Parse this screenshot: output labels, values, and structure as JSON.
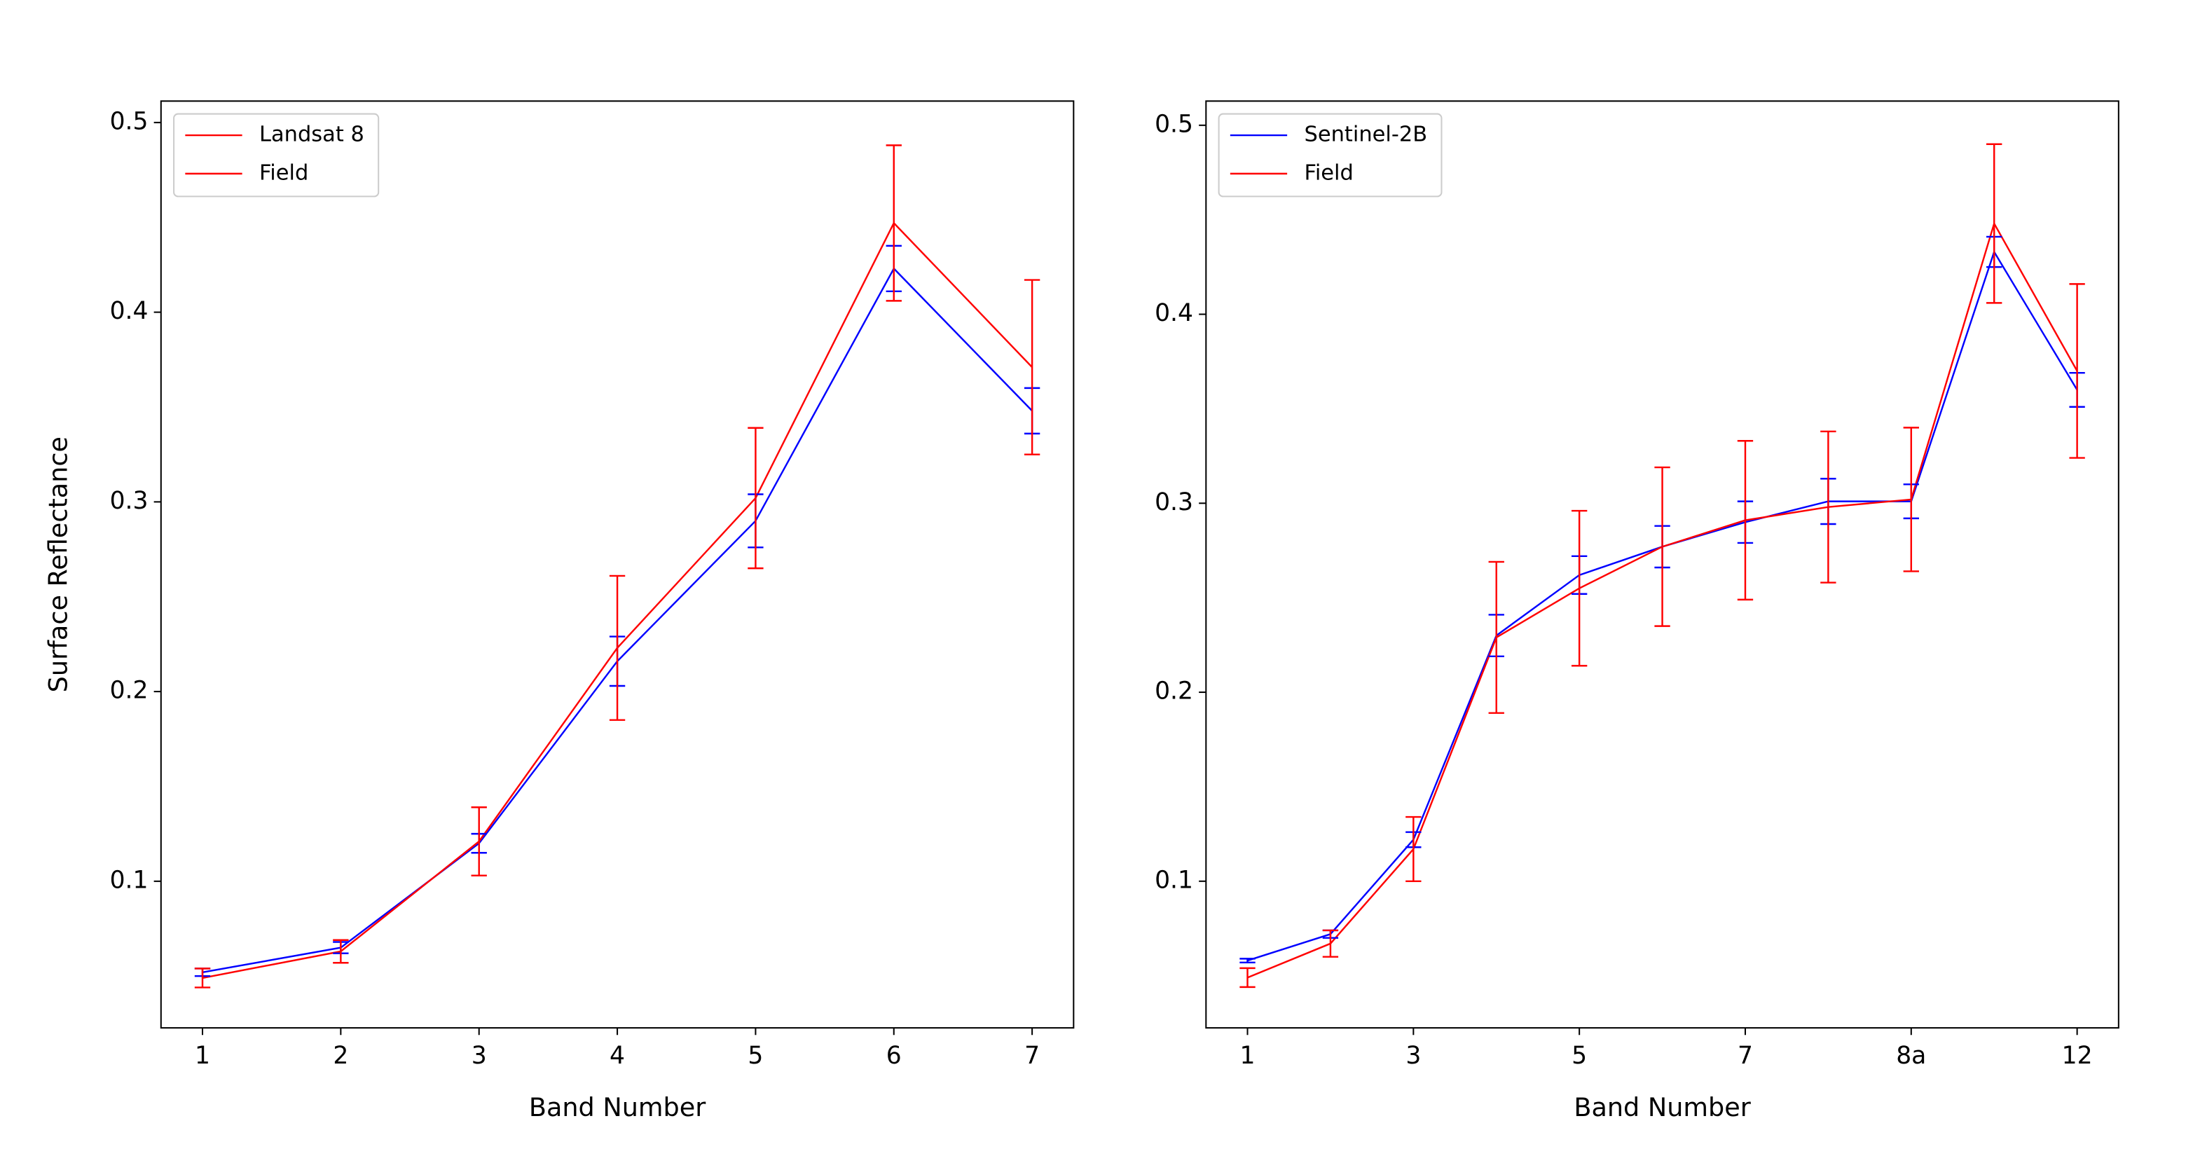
{
  "chart_data": [
    {
      "type": "line",
      "x": [
        1,
        2,
        3,
        4,
        5,
        6,
        7
      ],
      "xlim": [
        0.7,
        7.3
      ],
      "xticks": [
        1,
        2,
        3,
        4,
        5,
        6,
        7
      ],
      "ylim": [
        0.0227,
        0.5113
      ],
      "yticks": [
        0.1,
        0.2,
        0.3,
        0.4,
        0.5
      ],
      "x_label": "Band Number",
      "y_label": "Surface Reflectance",
      "legend": "upper left",
      "series": [
        {
          "name": "Landsat 8",
          "color": "#0000ff",
          "legend_color": "#ff0000",
          "values": [
            0.052,
            0.065,
            0.12,
            0.216,
            0.29,
            0.423,
            0.348
          ],
          "errors": [
            0.002,
            0.003,
            0.005,
            0.013,
            0.014,
            0.012,
            0.012
          ]
        },
        {
          "name": "Field",
          "color": "#ff0000",
          "values": [
            0.049,
            0.063,
            0.121,
            0.223,
            0.302,
            0.447,
            0.371
          ],
          "errors": [
            0.005,
            0.006,
            0.018,
            0.038,
            0.037,
            0.041,
            0.046
          ]
        }
      ]
    },
    {
      "type": "line",
      "categories": [
        "1",
        null,
        "3",
        null,
        "5",
        null,
        "7",
        null,
        "8a",
        null,
        "12"
      ],
      "ylim": [
        0.0224,
        0.5128
      ],
      "yticks": [
        0.1,
        0.2,
        0.3,
        0.4,
        0.5
      ],
      "x_label": "Band Number",
      "legend": "upper left",
      "series": [
        {
          "name": "Sentinel-2B",
          "color": "#0000ff",
          "values": [
            0.058,
            0.072,
            0.122,
            0.23,
            0.262,
            0.277,
            0.29,
            0.301,
            0.301,
            0.433,
            0.36
          ],
          "errors": [
            0.001,
            0.002,
            0.004,
            0.011,
            0.01,
            0.011,
            0.011,
            0.012,
            0.009,
            0.008,
            0.009
          ]
        },
        {
          "name": "Field",
          "color": "#ff0000",
          "values": [
            0.049,
            0.067,
            0.117,
            0.229,
            0.255,
            0.277,
            0.291,
            0.298,
            0.302,
            0.448,
            0.37
          ],
          "errors": [
            0.005,
            0.007,
            0.017,
            0.04,
            0.041,
            0.042,
            0.042,
            0.04,
            0.038,
            0.042,
            0.046
          ]
        }
      ]
    }
  ]
}
